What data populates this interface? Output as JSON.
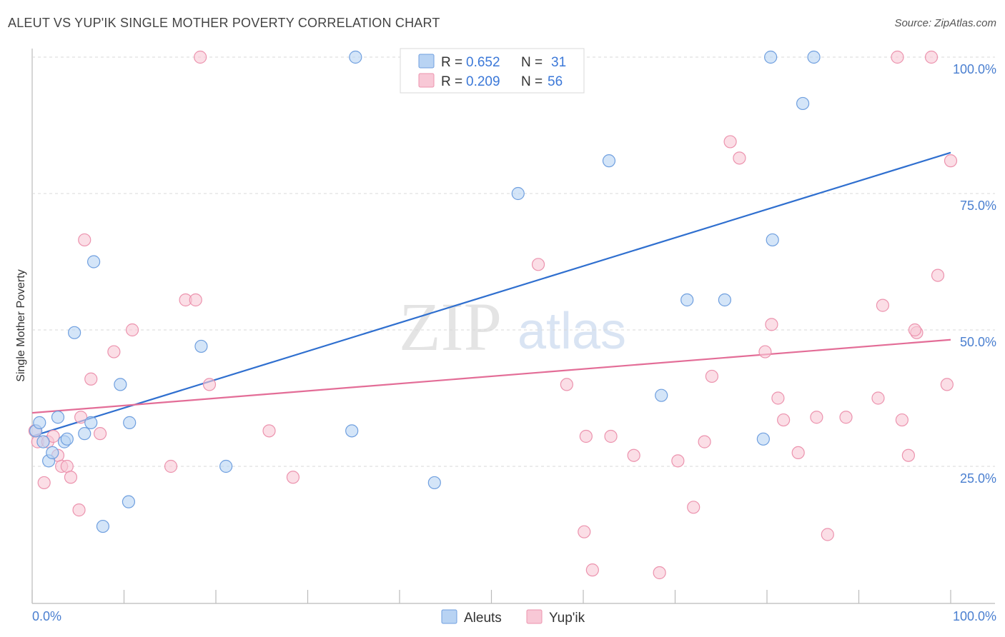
{
  "title": "ALEUT VS YUP'IK SINGLE MOTHER POVERTY CORRELATION CHART",
  "source": "Source: ZipAtlas.com",
  "watermark": {
    "zip": "ZIP",
    "atlas": "atlas"
  },
  "legend_top": {
    "r_label": "R =",
    "n_label": "N =",
    "rows": [
      {
        "r": "0.652",
        "n": "31"
      },
      {
        "r": "0.209",
        "n": "56"
      }
    ]
  },
  "legend_bottom": {
    "a": "Aleuts",
    "b": "Yup'ik"
  },
  "colors": {
    "aleut_fill": "#b8d3f3",
    "aleut_stroke": "#6f9fdf",
    "aleut_line": "#2f6fcf",
    "yupik_fill": "#f8c8d6",
    "yupik_stroke": "#ec93ae",
    "yupik_line": "#e36d97",
    "tick_text": "#4a7fd0"
  },
  "chart_data": {
    "type": "scatter",
    "title": "ALEUT VS YUP'IK SINGLE MOTHER POVERTY CORRELATION CHART",
    "xlabel": "",
    "ylabel": "Single Mother Poverty",
    "xlim": [
      0,
      100
    ],
    "ylim": [
      0,
      102
    ],
    "x_tick_labels": [
      "0.0%",
      "100.0%"
    ],
    "y_ticks": [
      {
        "value": 25,
        "label": "25.0%"
      },
      {
        "value": 50,
        "label": "50.0%"
      },
      {
        "value": 75,
        "label": "75.0%"
      },
      {
        "value": 100,
        "label": "100.0%"
      }
    ],
    "grid": true,
    "legend_placement": "top-center",
    "series": [
      {
        "name": "Aleuts",
        "stats": {
          "R": 0.652,
          "N": 31
        },
        "trend": {
          "x": [
            0,
            100
          ],
          "y": [
            30.5,
            82.5
          ]
        },
        "points": [
          {
            "x": 0.4,
            "y": 31.5
          },
          {
            "x": 0.8,
            "y": 33.0
          },
          {
            "x": 1.2,
            "y": 29.5
          },
          {
            "x": 1.8,
            "y": 26.0
          },
          {
            "x": 2.2,
            "y": 27.5
          },
          {
            "x": 2.8,
            "y": 34.0
          },
          {
            "x": 3.5,
            "y": 29.5
          },
          {
            "x": 3.8,
            "y": 30.0
          },
          {
            "x": 4.6,
            "y": 49.5
          },
          {
            "x": 5.7,
            "y": 31.0
          },
          {
            "x": 6.4,
            "y": 33.0
          },
          {
            "x": 6.7,
            "y": 62.5
          },
          {
            "x": 7.7,
            "y": 14.0
          },
          {
            "x": 9.6,
            "y": 40.0
          },
          {
            "x": 10.6,
            "y": 33.0
          },
          {
            "x": 10.5,
            "y": 18.5
          },
          {
            "x": 18.4,
            "y": 47.0
          },
          {
            "x": 21.1,
            "y": 25.0
          },
          {
            "x": 34.8,
            "y": 31.5
          },
          {
            "x": 35.2,
            "y": 100.0
          },
          {
            "x": 43.8,
            "y": 22.0
          },
          {
            "x": 52.9,
            "y": 75.0
          },
          {
            "x": 62.8,
            "y": 81.0
          },
          {
            "x": 68.5,
            "y": 38.0
          },
          {
            "x": 71.3,
            "y": 55.5
          },
          {
            "x": 75.4,
            "y": 55.5
          },
          {
            "x": 79.6,
            "y": 30.0
          },
          {
            "x": 80.4,
            "y": 100.0
          },
          {
            "x": 80.6,
            "y": 66.5
          },
          {
            "x": 83.9,
            "y": 91.5
          },
          {
            "x": 85.1,
            "y": 100.0
          }
        ]
      },
      {
        "name": "Yup'ik",
        "stats": {
          "R": 0.209,
          "N": 56
        },
        "trend": {
          "x": [
            0,
            100
          ],
          "y": [
            34.8,
            48.2
          ]
        },
        "points": [
          {
            "x": 0.3,
            "y": 31.5
          },
          {
            "x": 0.6,
            "y": 29.5
          },
          {
            "x": 1.3,
            "y": 22.0
          },
          {
            "x": 1.7,
            "y": 29.5
          },
          {
            "x": 2.3,
            "y": 30.5
          },
          {
            "x": 2.8,
            "y": 27.0
          },
          {
            "x": 3.2,
            "y": 25.0
          },
          {
            "x": 3.8,
            "y": 25.0
          },
          {
            "x": 4.2,
            "y": 23.0
          },
          {
            "x": 5.1,
            "y": 17.0
          },
          {
            "x": 5.3,
            "y": 34.0
          },
          {
            "x": 5.7,
            "y": 66.5
          },
          {
            "x": 6.4,
            "y": 41.0
          },
          {
            "x": 7.4,
            "y": 31.0
          },
          {
            "x": 8.9,
            "y": 46.0
          },
          {
            "x": 10.9,
            "y": 50.0
          },
          {
            "x": 15.1,
            "y": 25.0
          },
          {
            "x": 16.7,
            "y": 55.5
          },
          {
            "x": 17.8,
            "y": 55.5
          },
          {
            "x": 18.3,
            "y": 100.0
          },
          {
            "x": 19.3,
            "y": 40.0
          },
          {
            "x": 25.8,
            "y": 31.5
          },
          {
            "x": 28.4,
            "y": 23.0
          },
          {
            "x": 55.1,
            "y": 62.0
          },
          {
            "x": 58.2,
            "y": 40.0
          },
          {
            "x": 60.1,
            "y": 13.0
          },
          {
            "x": 60.3,
            "y": 30.5
          },
          {
            "x": 61.0,
            "y": 6.0
          },
          {
            "x": 63.0,
            "y": 30.5
          },
          {
            "x": 65.5,
            "y": 27.0
          },
          {
            "x": 68.3,
            "y": 5.5
          },
          {
            "x": 70.3,
            "y": 26.0
          },
          {
            "x": 72.0,
            "y": 17.5
          },
          {
            "x": 73.2,
            "y": 29.5
          },
          {
            "x": 74.0,
            "y": 41.5
          },
          {
            "x": 76.0,
            "y": 84.5
          },
          {
            "x": 77.0,
            "y": 81.5
          },
          {
            "x": 79.8,
            "y": 46.0
          },
          {
            "x": 80.5,
            "y": 51.0
          },
          {
            "x": 81.2,
            "y": 37.5
          },
          {
            "x": 81.8,
            "y": 33.5
          },
          {
            "x": 83.4,
            "y": 27.5
          },
          {
            "x": 85.4,
            "y": 34.0
          },
          {
            "x": 86.6,
            "y": 12.5
          },
          {
            "x": 88.6,
            "y": 34.0
          },
          {
            "x": 92.1,
            "y": 37.5
          },
          {
            "x": 92.6,
            "y": 54.5
          },
          {
            "x": 94.2,
            "y": 100.0
          },
          {
            "x": 94.7,
            "y": 33.5
          },
          {
            "x": 95.4,
            "y": 27.0
          },
          {
            "x": 96.3,
            "y": 49.5
          },
          {
            "x": 97.9,
            "y": 100.0
          },
          {
            "x": 98.6,
            "y": 60.0
          },
          {
            "x": 99.6,
            "y": 40.0
          },
          {
            "x": 100.0,
            "y": 81.0
          },
          {
            "x": 96.1,
            "y": 50.0
          }
        ]
      }
    ]
  }
}
